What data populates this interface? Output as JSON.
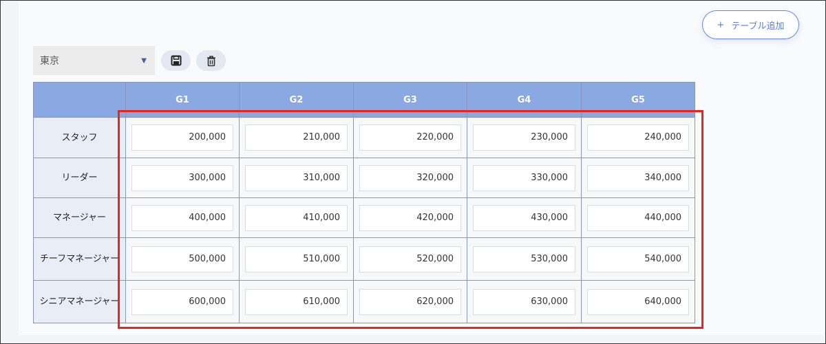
{
  "toolbar": {
    "add_table_label": "テーブル追加",
    "add_icon": "plus-icon",
    "region_select": "東京",
    "save_icon": "floppy-disk-icon",
    "delete_icon": "trash-icon"
  },
  "table": {
    "columns": [
      "",
      "G1",
      "G2",
      "G3",
      "G4",
      "G5"
    ],
    "rows": [
      {
        "label": "スタッフ",
        "values": [
          "200,000",
          "210,000",
          "220,000",
          "230,000",
          "240,000"
        ]
      },
      {
        "label": "リーダー",
        "values": [
          "300,000",
          "310,000",
          "320,000",
          "330,000",
          "340,000"
        ]
      },
      {
        "label": "マネージャー",
        "values": [
          "400,000",
          "410,000",
          "420,000",
          "430,000",
          "440,000"
        ]
      },
      {
        "label": "チーフマネージャー",
        "values": [
          "500,000",
          "510,000",
          "520,000",
          "530,000",
          "540,000"
        ]
      },
      {
        "label": "シニアマネージャー",
        "values": [
          "600,000",
          "610,000",
          "620,000",
          "630,000",
          "640,000"
        ]
      }
    ]
  },
  "colors": {
    "header": "#8aa8e2",
    "highlight": "#e8241b",
    "accent": "#5b86f0"
  }
}
